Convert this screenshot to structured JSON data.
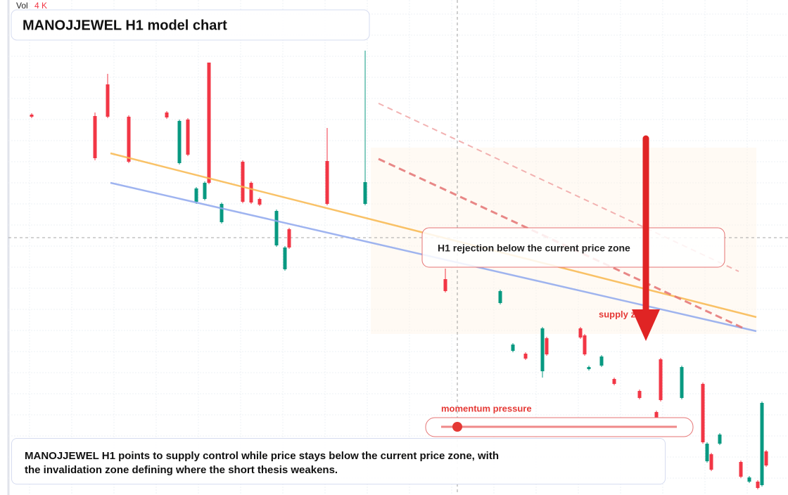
{
  "chart_data": {
    "type": "candlestick",
    "title": "MANOJJEWEL H1 model chart",
    "volume_label": "Vol",
    "volume_value": "4 K",
    "annotation": "H1 rejection below the current price zone",
    "zone_label": "supply zone",
    "gauge_label": "momentum pressure",
    "caption": "MANOJJEWEL H1 points to supply control while price stays below the current price zone, with the invalidation zone defining where the short thesis weakens.",
    "up_color": "#089981",
    "down_color": "#f23645",
    "xlim": [
      0,
      180
    ],
    "ylim": [
      0,
      704
    ],
    "grid": true,
    "x": [
      5,
      20,
      23,
      28,
      37,
      40,
      42,
      47,
      44,
      46,
      50,
      55,
      57,
      59,
      63,
      65,
      66,
      75,
      84,
      103,
      116,
      119,
      122,
      126,
      127,
      135,
      136,
      137,
      140,
      143,
      149,
      154,
      153,
      159,
      164,
      165,
      166,
      168,
      173,
      175,
      177,
      178,
      179
    ],
    "open": [
      541,
      539,
      584,
      538,
      544,
      472,
      534,
      615,
      417,
      421,
      388,
      474,
      444,
      421,
      355,
      321,
      378,
      475,
      414,
      307,
      273,
      205,
      201,
      176,
      223,
      237,
      227,
      179,
      184,
      165,
      148,
      193,
      118,
      138,
      158,
      48,
      58,
      73,
      47,
      19,
      19,
      14,
      62
    ],
    "high": [
      543,
      544,
      599,
      540,
      546,
      534,
      536,
      615,
      438,
      446,
      416,
      476,
      446,
      423,
      406,
      354,
      380,
      522,
      632,
      322,
      292,
      216,
      203,
      239,
      225,
      239,
      229,
      184,
      199,
      167,
      150,
      195,
      120,
      184,
      160,
      75,
      60,
      88,
      49,
      27,
      21,
      133,
      64
    ],
    "low": [
      536,
      476,
      536,
      472,
      535,
      470,
      482,
      442,
      414,
      419,
      386,
      415,
      414,
      411,
      353,
      319,
      350,
      412,
      412,
      288,
      271,
      203,
      192,
      167,
      198,
      222,
      198,
      177,
      182,
      156,
      136,
      133,
      108,
      136,
      73,
      46,
      34,
      71,
      24,
      17,
      8,
      12,
      40
    ],
    "close": [
      538,
      479,
      538,
      474,
      537,
      532,
      484,
      444,
      436,
      444,
      414,
      417,
      416,
      413,
      404,
      352,
      352,
      414,
      445,
      290,
      290,
      214,
      194,
      237,
      200,
      224,
      200,
      182,
      197,
      158,
      138,
      135,
      110,
      182,
      75,
      73,
      36,
      86,
      26,
      25,
      10,
      131,
      42
    ]
  }
}
